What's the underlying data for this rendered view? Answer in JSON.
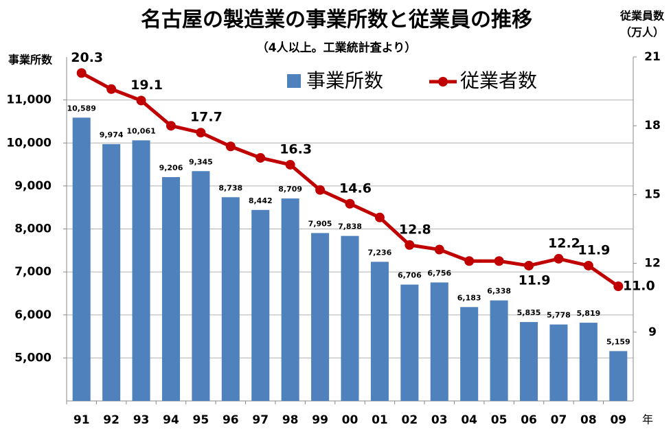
{
  "chart_data": {
    "type": "bar",
    "title": "名古屋の製造業の事業所数と従業員の推移",
    "subtitle": "（4人以上。工業統計査より）",
    "y_label": "事業所数",
    "y2_label": [
      "従業員数",
      "（万人）"
    ],
    "x_unit": "年",
    "categories": [
      "91",
      "92",
      "93",
      "94",
      "95",
      "96",
      "97",
      "98",
      "99",
      "00",
      "01",
      "02",
      "03",
      "04",
      "05",
      "06",
      "07",
      "08",
      "09"
    ],
    "series": [
      {
        "name": "事業所数",
        "type": "bar",
        "color": "#4f81bd",
        "values": [
          10589,
          9974,
          10061,
          9206,
          9345,
          8738,
          8442,
          8709,
          7905,
          7838,
          7236,
          6706,
          6756,
          6183,
          6338,
          5835,
          5778,
          5819,
          5159
        ],
        "value_labels": [
          "10,589",
          "9,974",
          "10,061",
          "9,206",
          "9,345",
          "8,738",
          "8,442",
          "8,709",
          "7,905",
          "7,838",
          "7,236",
          "6,706",
          "6,756",
          "6,183",
          "6,338",
          "5,835",
          "5,778",
          "5,819",
          "5,159"
        ]
      },
      {
        "name": "従業者数",
        "type": "line",
        "axis": "y2",
        "color": "#c00000",
        "values": [
          20.3,
          19.6,
          19.1,
          18.0,
          17.7,
          17.1,
          16.6,
          16.3,
          15.2,
          14.6,
          14.0,
          12.8,
          12.6,
          12.1,
          12.1,
          11.9,
          12.2,
          11.9,
          11.0
        ],
        "value_labels": [
          "20.3",
          null,
          "19.1",
          null,
          "17.7",
          null,
          null,
          "16.3",
          null,
          "14.6",
          null,
          "12.8",
          null,
          null,
          null,
          "11.9",
          "12.2",
          "11.9",
          "11.0"
        ]
      }
    ],
    "ylim": [
      4000,
      12000
    ],
    "yticks": [
      {
        "value": 5000,
        "label": "5,000"
      },
      {
        "value": 6000,
        "label": "6,000"
      },
      {
        "value": 7000,
        "label": "7,000"
      },
      {
        "value": 8000,
        "label": "8,000"
      },
      {
        "value": 9000,
        "label": "9,000"
      },
      {
        "value": 10000,
        "label": "10,000"
      },
      {
        "value": 11000,
        "label": "11,000"
      }
    ],
    "y2lim": [
      6,
      21
    ],
    "y2ticks": [
      9,
      12,
      15,
      18,
      21
    ],
    "grid": true
  }
}
